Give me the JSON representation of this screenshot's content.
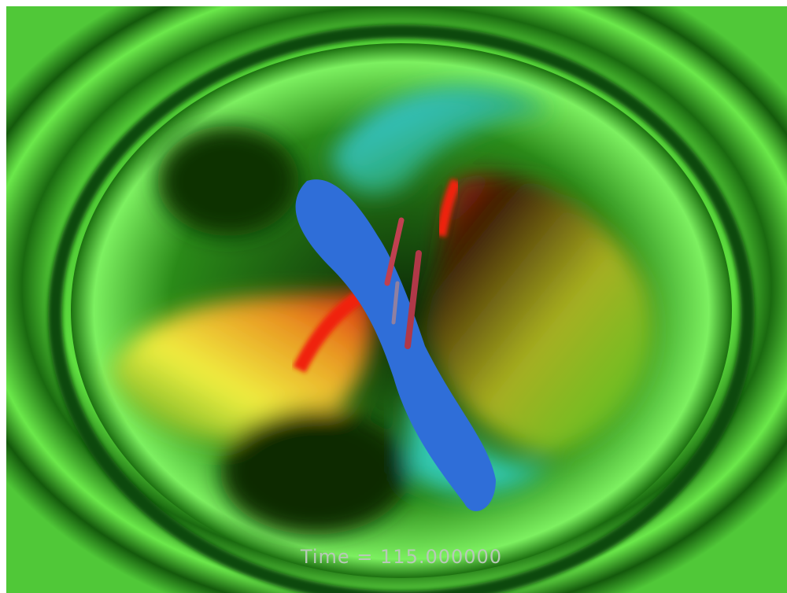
{
  "caption": "Time = 115.000000"
}
